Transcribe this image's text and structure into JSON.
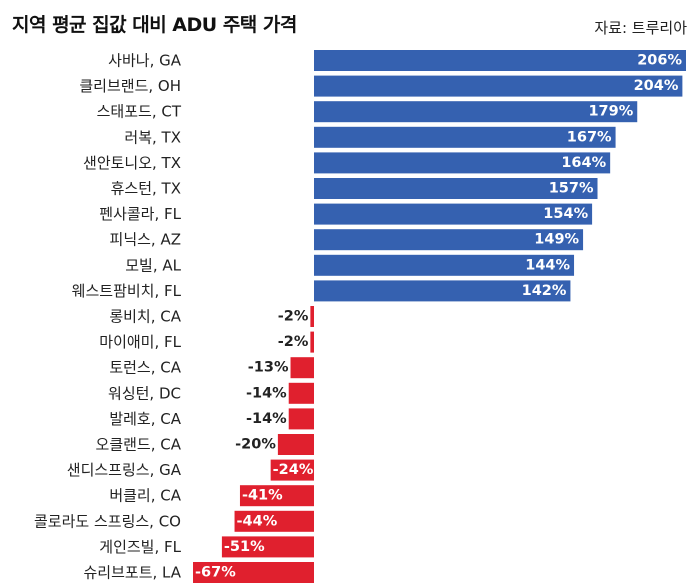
{
  "title": "지역 평균 집값 대비 ADU 주택 가격",
  "source": "자료: 트루리아",
  "colors": {
    "positive": "#3561b0",
    "negative": "#e0202e",
    "positive_label": "#ffffff",
    "negative_label": "#222222"
  },
  "chart_data": {
    "type": "bar",
    "orientation": "horizontal",
    "title": "지역 평균 집값 대비 ADU 주택 가격",
    "categories": [
      "사바나, GA",
      "클리브랜드, OH",
      "스태포드, CT",
      "러복, TX",
      "샌안토니오, TX",
      "휴스턴, TX",
      "펜사콜라, FL",
      "피닉스, AZ",
      "모빌, AL",
      "웨스트팜비치, FL",
      "롱비치, CA",
      "마이애미, FL",
      "토런스, CA",
      "워싱턴, DC",
      "발레호, CA",
      "오클랜드, CA",
      "샌디스프링스, GA",
      "버클리, CA",
      "콜로라도 스프링스, CO",
      "게인즈빌, FL",
      "슈리브포트, LA"
    ],
    "values": [
      206,
      204,
      179,
      167,
      164,
      157,
      154,
      149,
      144,
      142,
      -2,
      -2,
      -13,
      -14,
      -14,
      -20,
      -24,
      -41,
      -44,
      -51,
      -67
    ],
    "value_labels": [
      "206%",
      "204%",
      "179%",
      "167%",
      "164%",
      "157%",
      "154%",
      "149%",
      "144%",
      "142%",
      "-2%",
      "-2%",
      "-13%",
      "-14%",
      "-14%",
      "-20%",
      "-24%",
      "-41%",
      "-44%",
      "-51%",
      "-67%"
    ],
    "unit": "%",
    "xlim": [
      -67,
      206
    ],
    "grid": false,
    "legend": "none"
  }
}
